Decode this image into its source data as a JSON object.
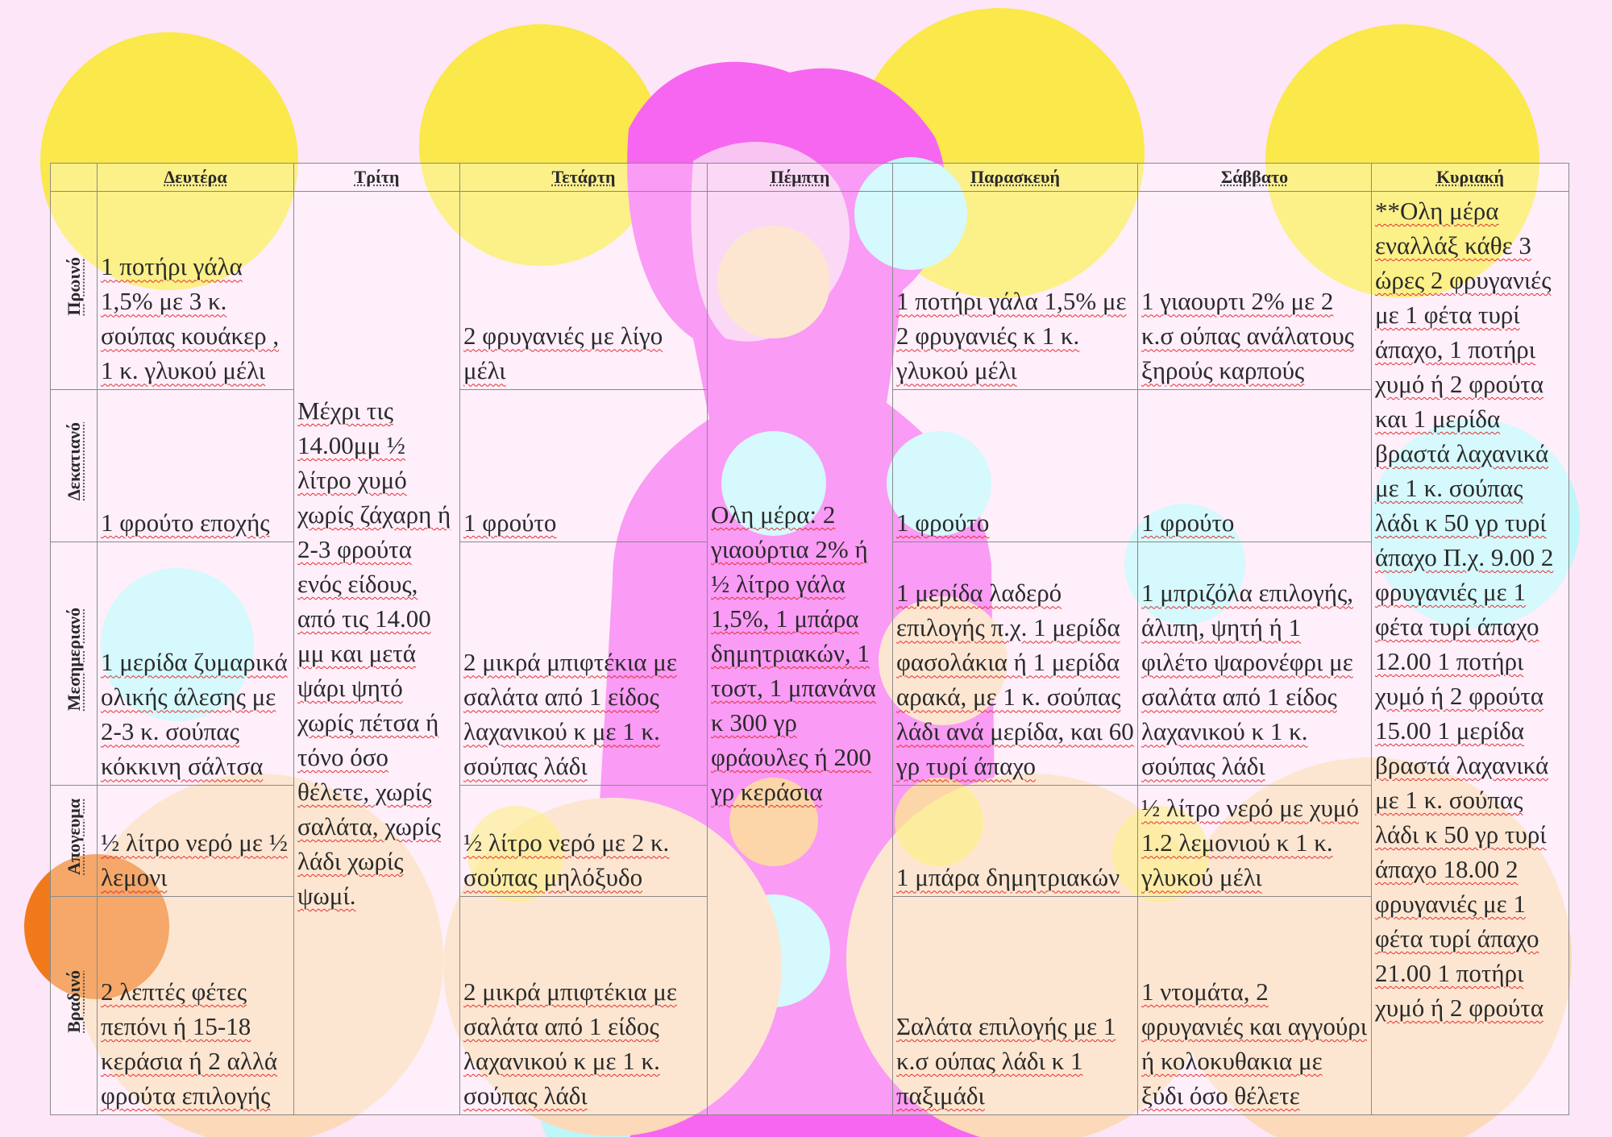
{
  "table": {
    "days": [
      "Δευτέρα",
      "Τρίτη",
      "Τετάρτη",
      "Πέμπτη",
      "Παρασκευή",
      "Σάββατο",
      "Κυριακή"
    ],
    "meals": [
      "Πρωινό",
      "Δεκατιανό",
      "Μεσημεριανό",
      "Απογευμα",
      "Βραδινό"
    ],
    "monday": {
      "breakfast": "1 ποτήρι γάλα 1,5% με 3 κ. σούπας κουάκερ , 1 κ. γλυκού μέλι",
      "snack": "1 φρούτο εποχής",
      "lunch": "1 μερίδα ζυμαρικά ολικής άλεσης με 2-3 κ. σούπας κόκκινη σάλτσα",
      "afternoon": "½ λίτρο νερό με ½ λεμονι",
      "dinner": "2 λεπτές φέτες πεπόνι ή 15-18 κεράσια ή 2 αλλά φρούτα επιλογής"
    },
    "tuesday": {
      "allday": "Μέχρι τις 14.00μμ ½ λίτρο χυμό χωρίς ζάχαρη ή 2-3 φρούτα ενός είδους, από τις 14.00 μμ και μετά ψάρι ψητό χωρίς πέτσα ή τόνο όσο θέλετε, χωρίς σαλάτα, χωρίς λάδι χωρίς ψωμί."
    },
    "wednesday": {
      "breakfast": "2 φρυγανιές με λίγο μέλι",
      "snack": "1 φρούτο",
      "lunch": "2 μικρά μπιφτέκια με σαλάτα από 1 είδος λαχανικού κ με 1 κ. σούπας λάδι",
      "afternoon": "½ λίτρο νερό με 2 κ. σούπας μηλόξυδο",
      "dinner": "2 μικρά μπιφτέκια με σαλάτα από 1 είδος λαχανικού κ με 1 κ. σούπας λάδι"
    },
    "thursday": {
      "allday": "Ολη μέρα: 2 γιαούρτια 2% ή ½ λίτρο γάλα 1,5%, 1 μπάρα δημητριακών, 1 τοστ, 1 μπανάνα κ 300 γρ φράουλες ή 200 γρ κεράσια"
    },
    "friday": {
      "breakfast": "1 ποτήρι γάλα 1,5% με 2 φρυγανιές κ 1 κ. γλυκού μέλι",
      "snack": "1 φρούτο",
      "lunch": "1 μερίδα λαδερό επιλογής π.χ. 1 μερίδα φασολάκια ή 1 μερίδα αρακά, με 1 κ. σούπας λάδι ανά μερίδα, και 60 γρ τυρί άπαχο",
      "afternoon": "1 μπάρα δημητριακών",
      "dinner": "Σαλάτα επιλογής με 1 κ.σ ούπας λάδι κ 1 παξιμάδι"
    },
    "saturday": {
      "breakfast": "1 γιαουρτι 2% με 2 κ.σ ούπας ανάλατους ξηρούς καρπούς",
      "snack": "1 φρούτο",
      "lunch": "1 μπριζόλα επιλογής, άλιπη, ψητή ή 1 φιλέτο ψαρονέφρι με σαλάτα από 1 είδος λαχανικού κ 1 κ. σούπας λάδι",
      "afternoon": "½ λίτρο νερό με χυμό 1.2 λεμονιού κ 1 κ. γλυκού μέλι",
      "dinner": "1 ντομάτα, 2 φρυγανιές και αγγούρι ή κολοκυθακια με ξύδι όσο θέλετε"
    },
    "sunday": {
      "allday": "**Ολη μέρα εναλλάξ κάθε 3 ώρες 2 φρυγανιές με 1 φέτα τυρί άπαχο, 1 ποτήρι χυμό ή 2 φρούτα και 1 μερίδα βραστά λαχανικά με 1 κ. σούπας λάδι κ 50 γρ τυρί άπαχο Π.χ. 9.00 2 φρυγανιές με 1 φέτα τυρί άπαχο 12.00 1 ποτήρι χυμό ή 2 φρούτα 15.00 1 μερίδα βραστά λαχανικά με 1 κ. σούπας λάδι κ 50 γρ τυρί άπαχο 18.00 2 φρυγανιές με 1 φέτα τυρί άπαχο 21.00 1 ποτήρι χυμό ή 2 φρούτα"
    }
  },
  "colors": {
    "page_bg": "#fde6f7",
    "yellow": "#fbe84a",
    "cyan": "#bff6fa",
    "peach": "#fcd9b8",
    "magenta": "#f766f0",
    "orange": "#f07a1a"
  }
}
